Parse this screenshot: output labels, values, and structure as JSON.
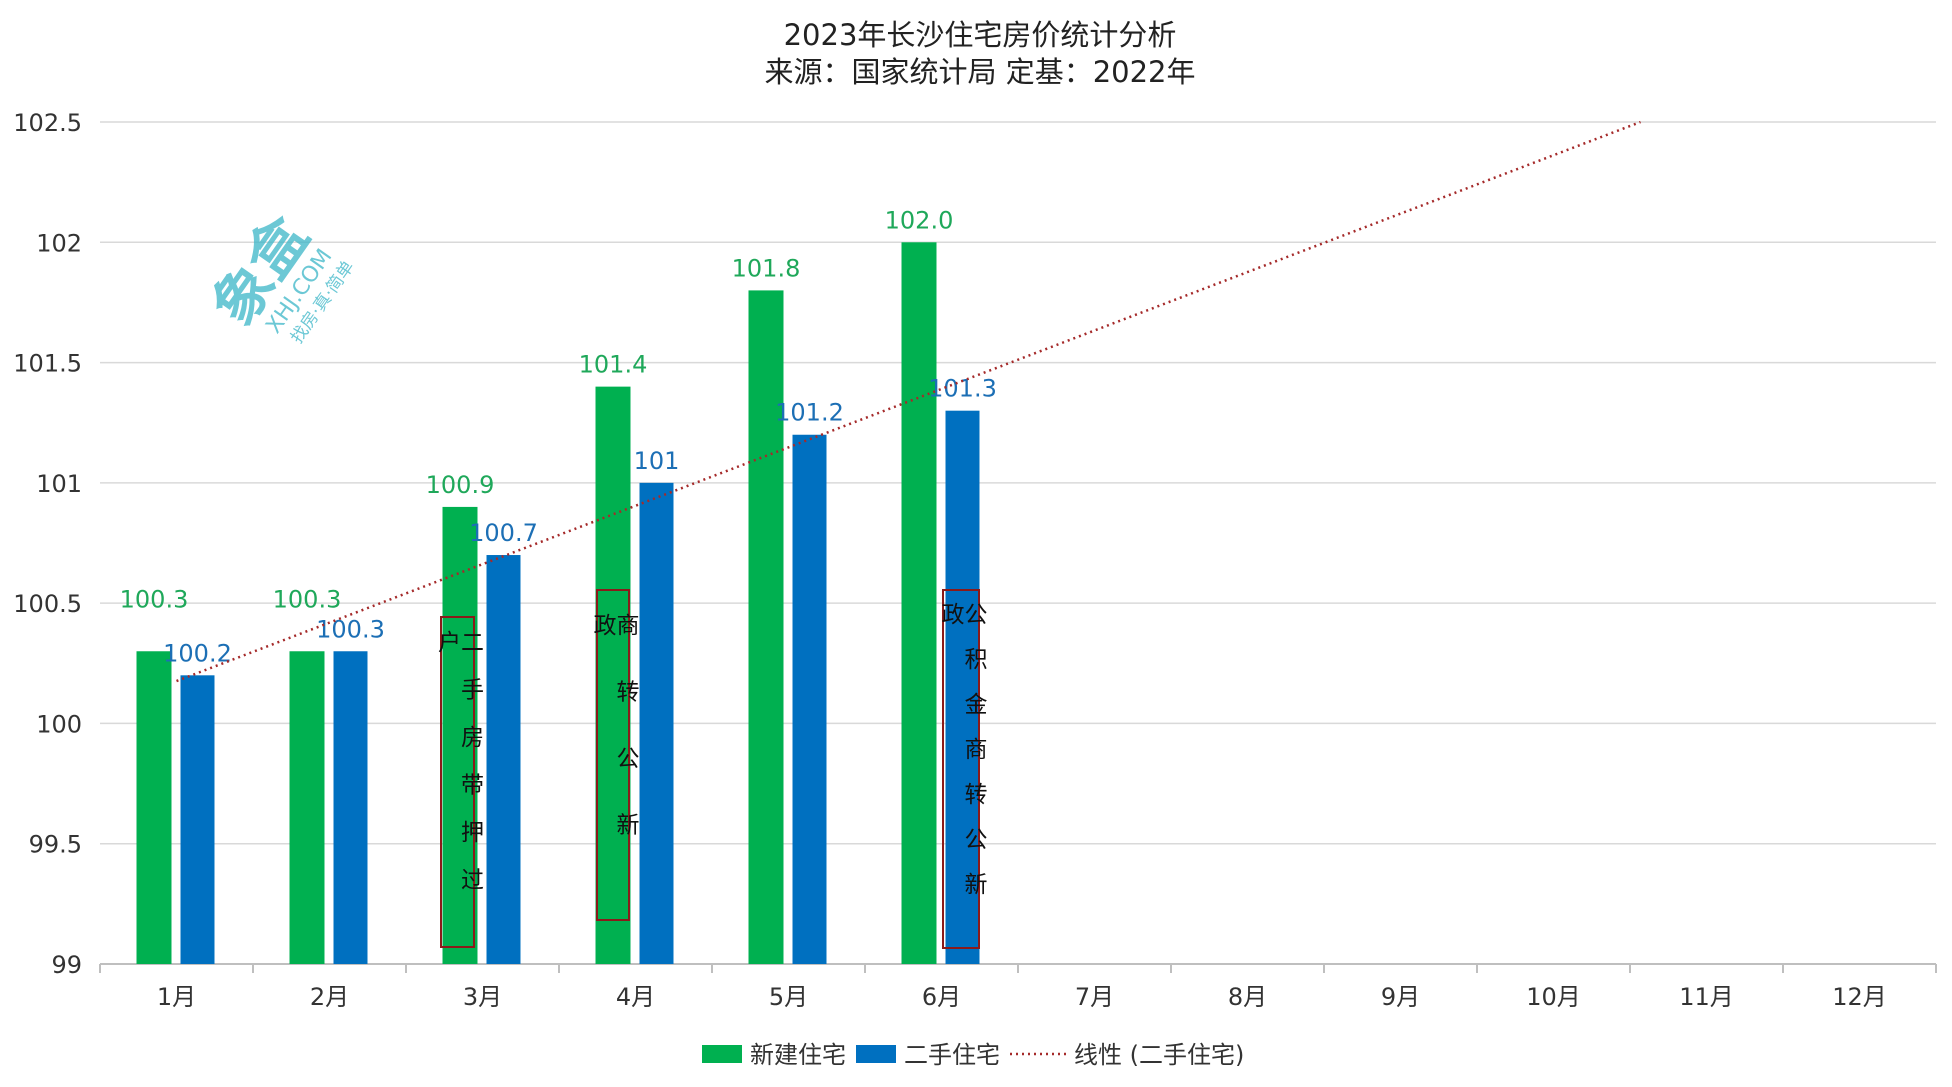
{
  "chart_data": {
    "type": "bar",
    "title": "2023年长沙住宅房价统计分析",
    "subtitle": "来源：国家统计局 定基：2022年",
    "categories": [
      "1月",
      "2月",
      "3月",
      "4月",
      "5月",
      "6月",
      "7月",
      "8月",
      "9月",
      "10月",
      "11月",
      "12月"
    ],
    "series": [
      {
        "name": "新建住宅",
        "color": "#00B050",
        "label_color": "#1FA85A",
        "values": [
          100.3,
          100.3,
          100.9,
          101.4,
          101.8,
          102.0,
          null,
          null,
          null,
          null,
          null,
          null
        ],
        "labels": [
          "100.3",
          "100.3",
          "100.9",
          "101.4",
          "101.8",
          "102.0"
        ]
      },
      {
        "name": "二手住宅",
        "color": "#0070C0",
        "label_color": "#1C6FB5",
        "values": [
          100.2,
          100.3,
          100.7,
          101,
          101.2,
          101.3,
          null,
          null,
          null,
          null,
          null,
          null
        ],
        "labels": [
          "100.2",
          "100.3",
          "100.7",
          "101",
          "101.2",
          "101.3"
        ]
      }
    ],
    "trendline": {
      "name": "线性 (二手住宅)",
      "type": "linear",
      "of_series": "二手住宅",
      "color": "#A52A2A",
      "style": "dotted"
    },
    "yticks": [
      "99",
      "99.5",
      "100",
      "100.5",
      "101",
      "101.5",
      "102",
      "102.5"
    ],
    "ylim": [
      99,
      102.5
    ],
    "grid": true,
    "legend": "bottom",
    "annotations": [
      {
        "category": "3月",
        "text": "二手房带押过户"
      },
      {
        "category": "4月",
        "text": "商转公新政"
      },
      {
        "category": "6月",
        "text": "公积金商转公新政"
      }
    ]
  },
  "watermark": {
    "logo_text": "象盒",
    "domain": "XHJ.COM",
    "slogan": "找房·真·简单"
  }
}
